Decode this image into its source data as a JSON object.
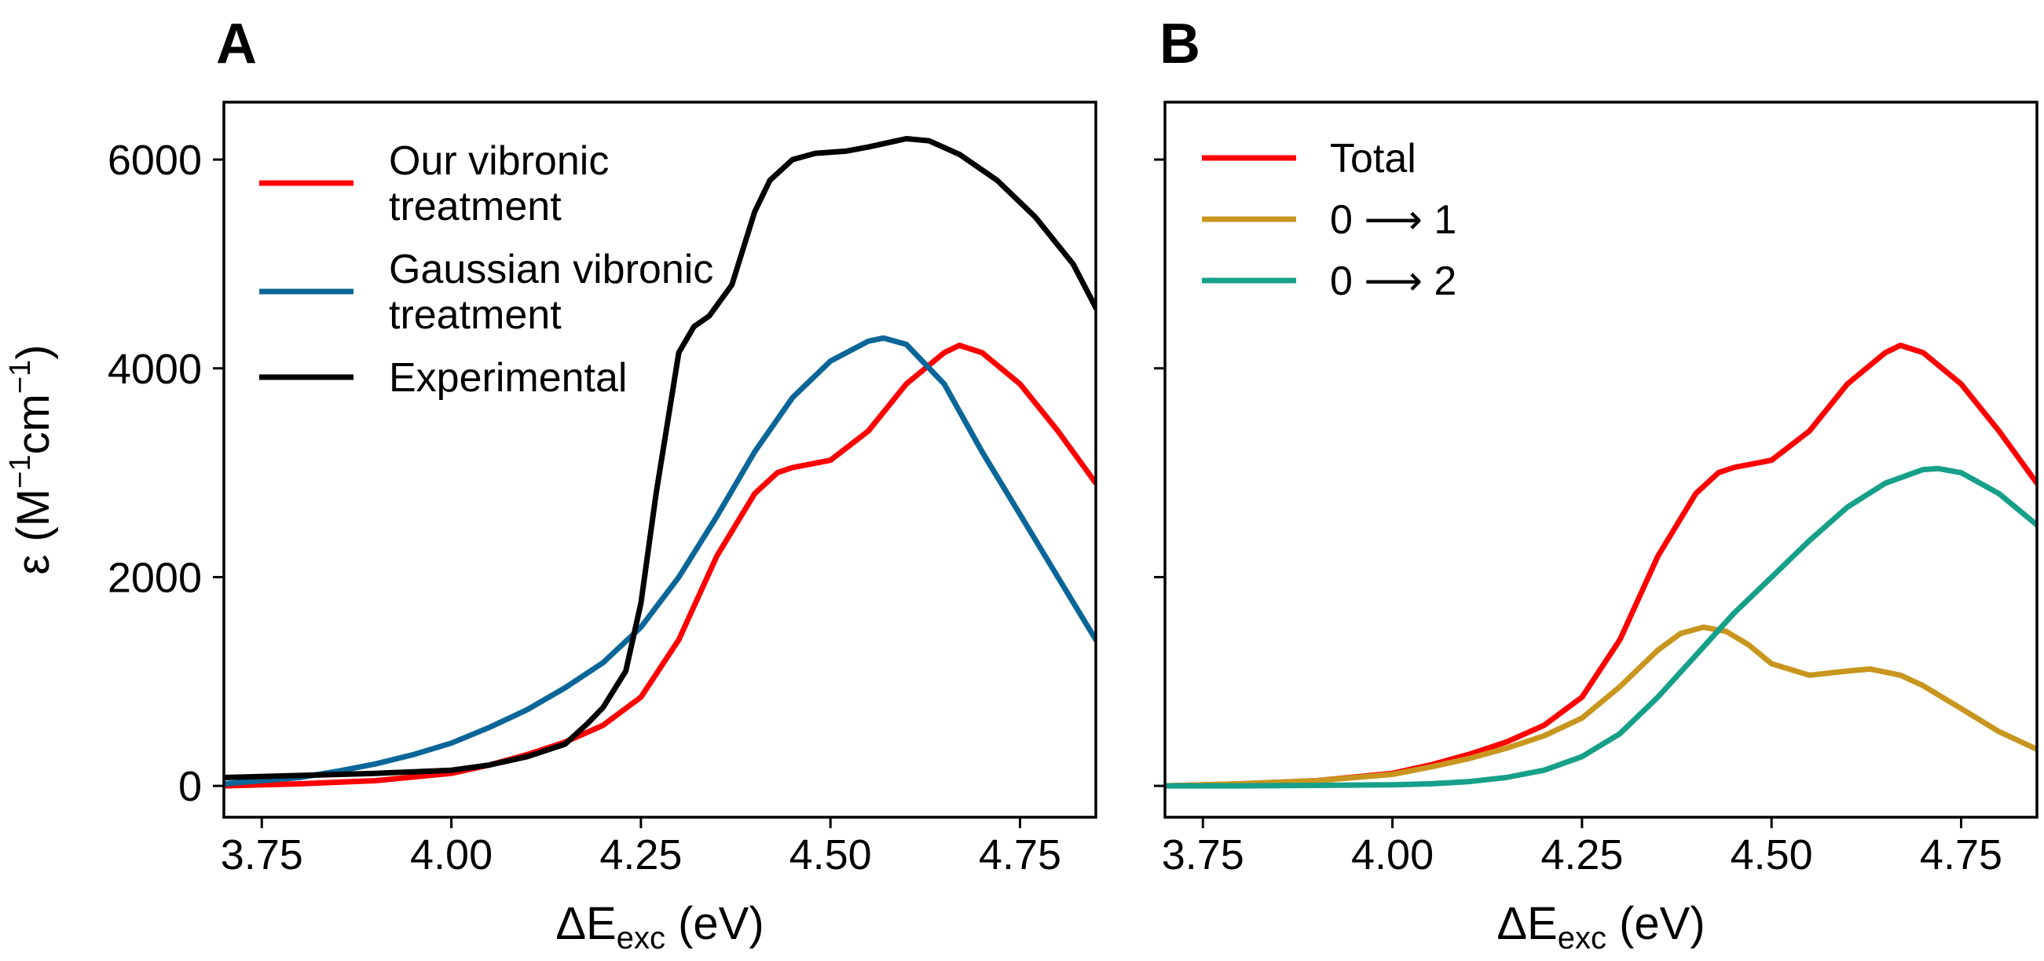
{
  "chart_data": [
    {
      "type": "line",
      "panel_label": "A",
      "xlabel_main": "ΔE",
      "xlabel_sub": "exc",
      "xlabel_unit": " (eV)",
      "ylabel_main": "ε (M",
      "ylabel_sup1": "−1",
      "ylabel_mid": "cm",
      "ylabel_sup2": "−1",
      "ylabel_end": ")",
      "xlim": [
        3.7,
        4.85
      ],
      "ylim": [
        -300,
        6550
      ],
      "xticks": [
        3.75,
        4.0,
        4.25,
        4.5,
        4.75
      ],
      "xtick_labels": [
        "3.75",
        "4.00",
        "4.25",
        "4.50",
        "4.75"
      ],
      "yticks": [
        0,
        2000,
        4000,
        6000
      ],
      "ytick_labels": [
        "0",
        "2000",
        "4000",
        "6000"
      ],
      "legend_position": "upper-left",
      "series": [
        {
          "name_lines": [
            "Our vibronic",
            "treatment"
          ],
          "color": "#ff0000",
          "x": [
            3.7,
            3.8,
            3.9,
            4.0,
            4.05,
            4.1,
            4.15,
            4.2,
            4.25,
            4.3,
            4.35,
            4.4,
            4.43,
            4.45,
            4.5,
            4.55,
            4.6,
            4.65,
            4.67,
            4.7,
            4.75,
            4.8,
            4.85
          ],
          "y": [
            0,
            20,
            50,
            120,
            200,
            300,
            420,
            580,
            850,
            1400,
            2200,
            2800,
            3000,
            3050,
            3120,
            3400,
            3850,
            4150,
            4220,
            4150,
            3850,
            3400,
            2900
          ]
        },
        {
          "name_lines": [
            "Gaussian vibronic",
            "treatment"
          ],
          "color": "#0a6698",
          "x": [
            3.7,
            3.8,
            3.85,
            3.9,
            3.95,
            4.0,
            4.05,
            4.1,
            4.15,
            4.2,
            4.25,
            4.3,
            4.35,
            4.4,
            4.45,
            4.5,
            4.55,
            4.57,
            4.6,
            4.65,
            4.7,
            4.75,
            4.8,
            4.85
          ],
          "y": [
            20,
            80,
            140,
            210,
            300,
            410,
            560,
            730,
            940,
            1180,
            1520,
            2000,
            2580,
            3200,
            3720,
            4070,
            4260,
            4290,
            4230,
            3850,
            3200,
            2600,
            2000,
            1400
          ]
        },
        {
          "name_lines": [
            "Experimental"
          ],
          "color": "#000000",
          "x": [
            3.7,
            3.8,
            3.9,
            4.0,
            4.05,
            4.1,
            4.15,
            4.18,
            4.2,
            4.23,
            4.25,
            4.27,
            4.3,
            4.32,
            4.34,
            4.37,
            4.4,
            4.42,
            4.45,
            4.48,
            4.52,
            4.55,
            4.6,
            4.63,
            4.67,
            4.72,
            4.77,
            4.82,
            4.85
          ],
          "y": [
            80,
            100,
            120,
            150,
            200,
            280,
            400,
            600,
            750,
            1100,
            1750,
            2800,
            4150,
            4400,
            4500,
            4800,
            5500,
            5800,
            6000,
            6060,
            6080,
            6120,
            6200,
            6180,
            6050,
            5800,
            5450,
            5000,
            4580
          ]
        }
      ]
    },
    {
      "type": "line",
      "panel_label": "B",
      "xlabel_main": "ΔE",
      "xlabel_sub": "exc",
      "xlabel_unit": " (eV)",
      "xlim": [
        3.7,
        4.85
      ],
      "ylim": [
        -300,
        6550
      ],
      "xticks": [
        3.75,
        4.0,
        4.25,
        4.5,
        4.75
      ],
      "xtick_labels": [
        "3.75",
        "4.00",
        "4.25",
        "4.50",
        "4.75"
      ],
      "yticks": [
        0,
        2000,
        4000,
        6000
      ],
      "legend_position": "upper-left",
      "series": [
        {
          "name_lines": [
            "Total"
          ],
          "color": "#ff0000",
          "x": [
            3.7,
            3.8,
            3.9,
            4.0,
            4.05,
            4.1,
            4.15,
            4.2,
            4.25,
            4.3,
            4.35,
            4.4,
            4.43,
            4.45,
            4.5,
            4.55,
            4.6,
            4.65,
            4.67,
            4.7,
            4.75,
            4.8,
            4.85
          ],
          "y": [
            0,
            20,
            50,
            120,
            200,
            300,
            420,
            580,
            850,
            1400,
            2200,
            2800,
            3000,
            3050,
            3120,
            3400,
            3850,
            4150,
            4220,
            4150,
            3850,
            3400,
            2900
          ]
        },
        {
          "name_lines": [
            "0 ⟶ 1"
          ],
          "color": "#c8961e",
          "x": [
            3.7,
            3.8,
            3.9,
            4.0,
            4.05,
            4.1,
            4.15,
            4.2,
            4.25,
            4.3,
            4.35,
            4.38,
            4.41,
            4.44,
            4.47,
            4.5,
            4.55,
            4.6,
            4.63,
            4.67,
            4.7,
            4.75,
            4.8,
            4.85
          ],
          "y": [
            0,
            20,
            50,
            110,
            180,
            260,
            360,
            480,
            650,
            950,
            1300,
            1460,
            1520,
            1480,
            1350,
            1170,
            1060,
            1100,
            1120,
            1060,
            960,
            740,
            520,
            350
          ]
        },
        {
          "name_lines": [
            "0 ⟶ 2"
          ],
          "color": "#16a089",
          "x": [
            3.7,
            3.8,
            3.9,
            4.0,
            4.05,
            4.1,
            4.15,
            4.2,
            4.25,
            4.3,
            4.35,
            4.4,
            4.45,
            4.5,
            4.55,
            4.6,
            4.65,
            4.7,
            4.72,
            4.75,
            4.8,
            4.85
          ],
          "y": [
            0,
            0,
            5,
            10,
            20,
            40,
            80,
            150,
            280,
            500,
            850,
            1250,
            1650,
            2000,
            2350,
            2670,
            2900,
            3030,
            3040,
            3000,
            2800,
            2500
          ]
        }
      ]
    }
  ]
}
